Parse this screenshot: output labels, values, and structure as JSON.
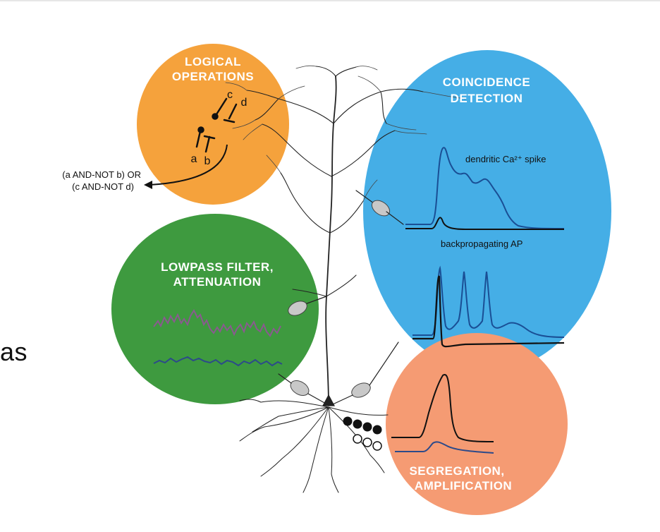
{
  "slide": {
    "partial_word": "as"
  },
  "diagram": {
    "logical_operations": {
      "title_line1": "LOGICAL",
      "title_line2": "OPERATIONS",
      "synapse_labels": [
        "a",
        "b",
        "c",
        "d"
      ],
      "output_line1": "(a AND-NOT b) OR",
      "output_line2": "(c AND-NOT d)",
      "color": "#F5A23C"
    },
    "coincidence_detection": {
      "title_line1": "COINCIDENCE",
      "title_line2": "DETECTION",
      "trace_label_1": "dendritic Ca²⁺ spike",
      "trace_label_2": "backpropagating AP",
      "color": "#45AEE6"
    },
    "lowpass_filter": {
      "title_line1": "LOWPASS FILTER,",
      "title_line2": "ATTENUATION",
      "color": "#3E9A3F",
      "trace_colors": [
        "#8a5a8f",
        "#2c4a8a"
      ]
    },
    "segregation": {
      "title_line1": "SEGREGATION,",
      "title_line2": "AMPLIFICATION",
      "color": "#F59B73"
    }
  }
}
